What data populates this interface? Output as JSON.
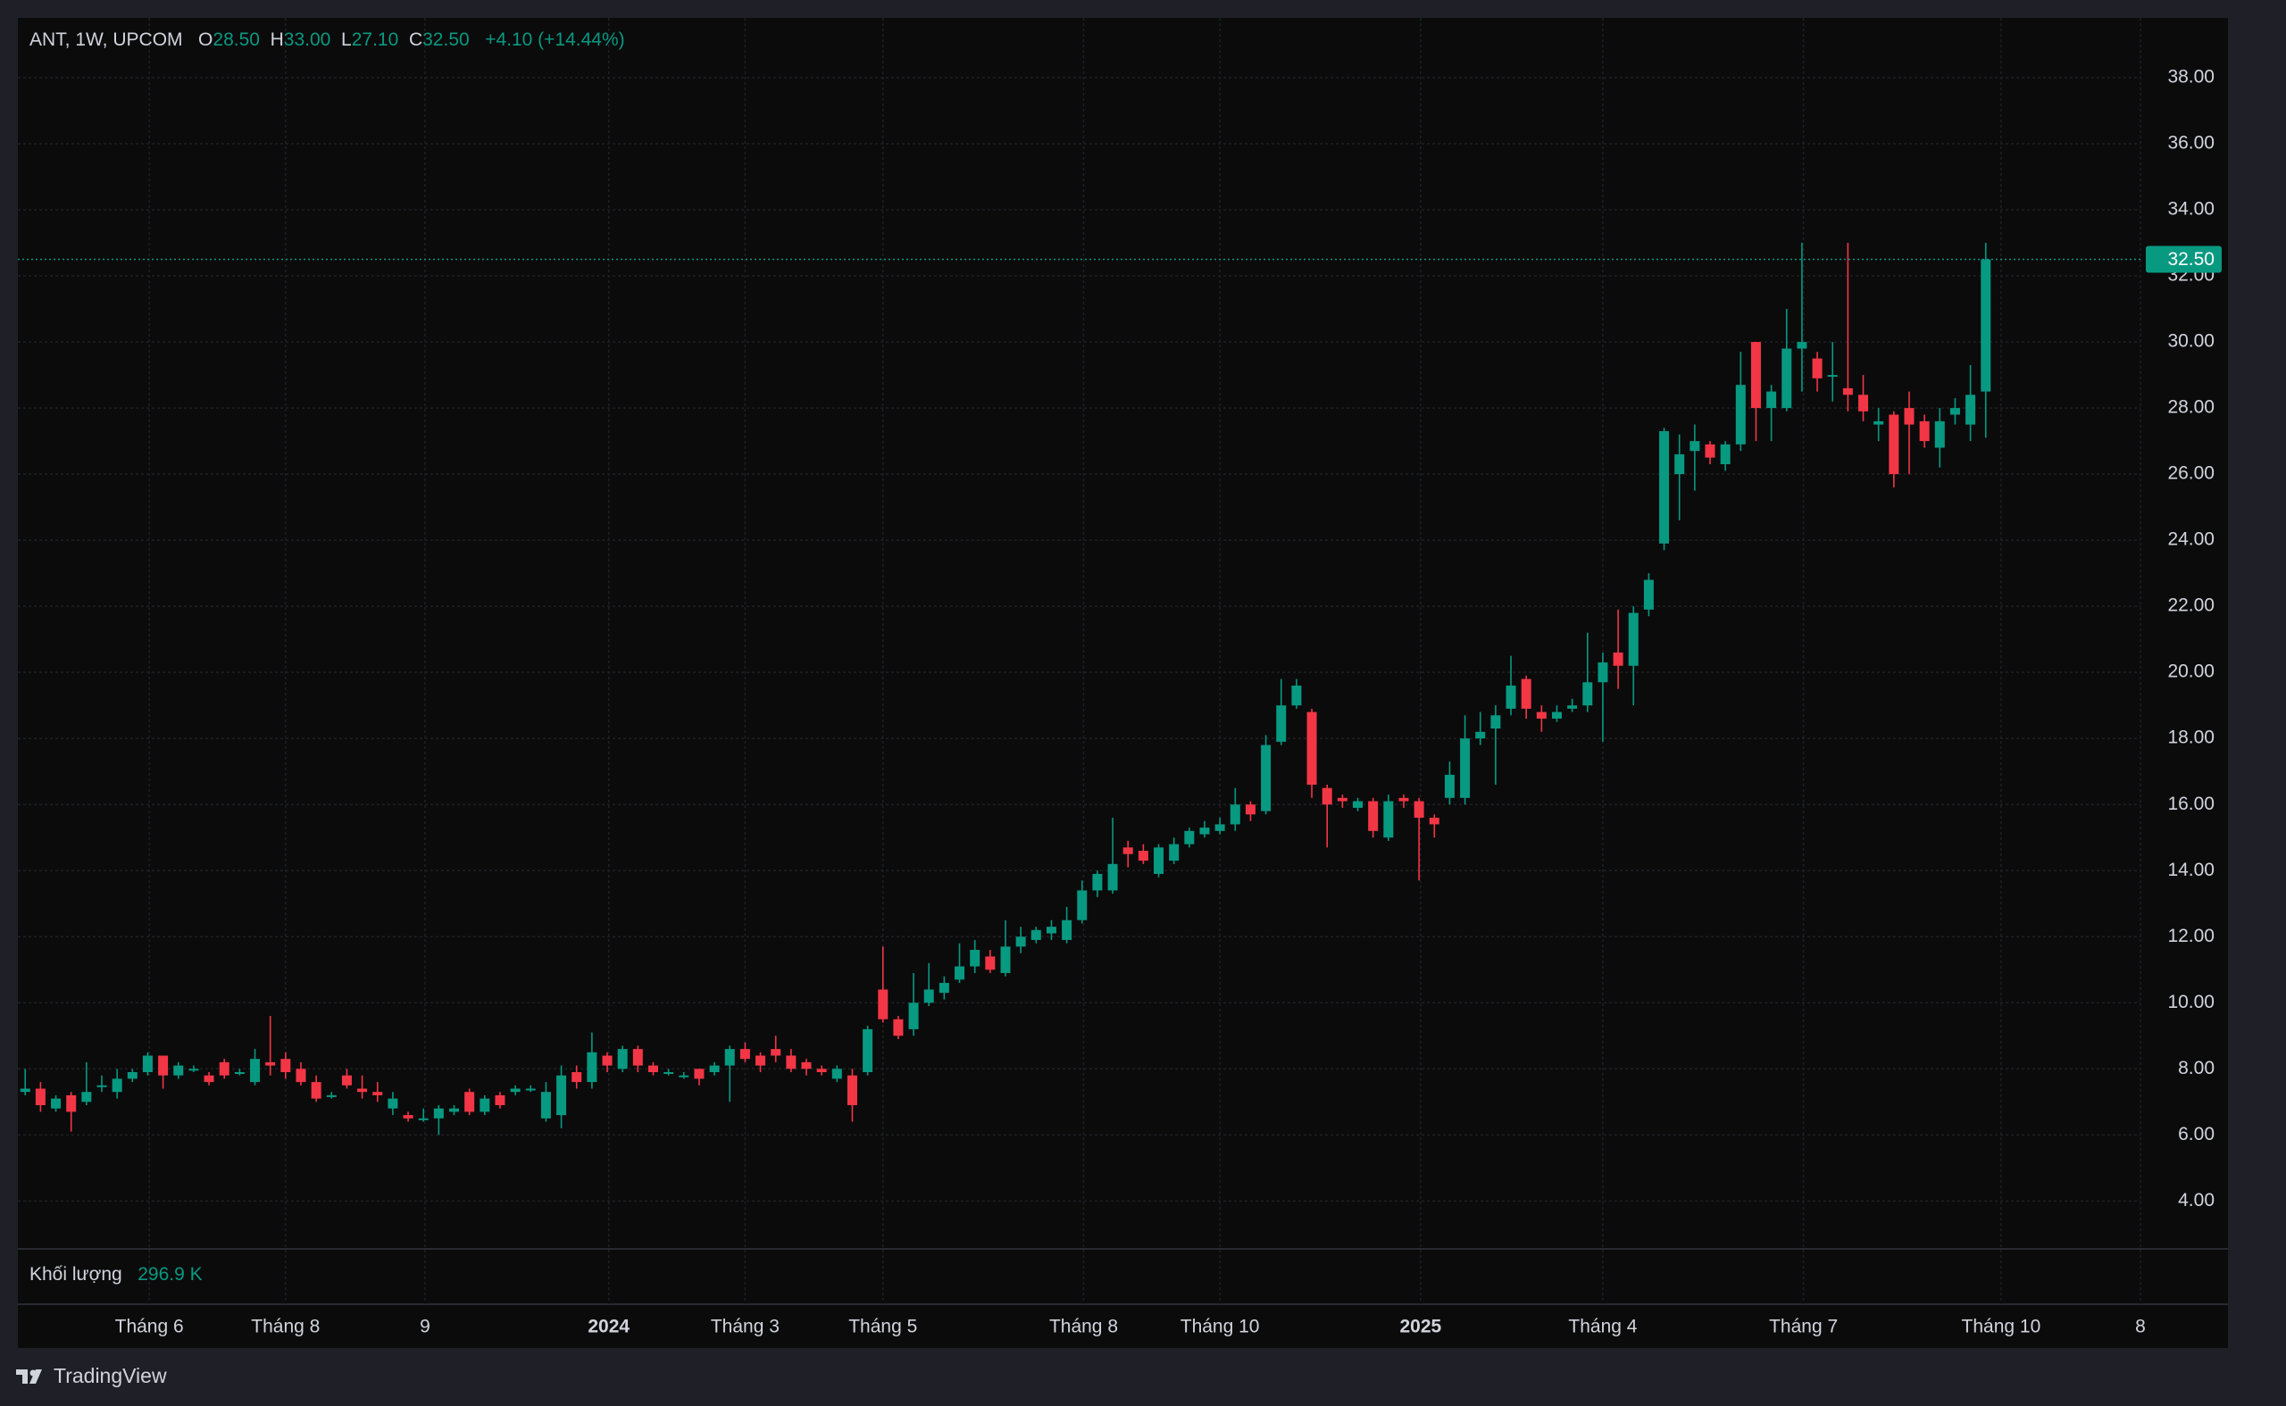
{
  "header": {
    "symbol": "ANT, 1W, UPCOM",
    "ohlc": [
      {
        "key": "O",
        "value": "28.50"
      },
      {
        "key": "H",
        "value": "33.00"
      },
      {
        "key": "L",
        "value": "27.10"
      },
      {
        "key": "C",
        "value": "32.50"
      }
    ],
    "change": "+4.10 (+14.44%)"
  },
  "volume": {
    "label": "Khối lượng",
    "value": "296.9 K"
  },
  "footer": {
    "brand": "TradingView"
  },
  "chart_data": {
    "type": "candlestick",
    "up_color": "#089981",
    "down_color": "#f23645",
    "grid": true,
    "ylim": [
      2.55,
      39.81
    ],
    "yticks": [
      {
        "value": 4,
        "label": "4.00"
      },
      {
        "value": 6,
        "label": "6.00"
      },
      {
        "value": 8,
        "label": "8.00"
      },
      {
        "value": 10,
        "label": "10.00"
      },
      {
        "value": 12,
        "label": "12.00"
      },
      {
        "value": 14,
        "label": "14.00"
      },
      {
        "value": 16,
        "label": "16.00"
      },
      {
        "value": 18,
        "label": "18.00"
      },
      {
        "value": 20,
        "label": "20.00"
      },
      {
        "value": 22,
        "label": "22.00"
      },
      {
        "value": 24,
        "label": "24.00"
      },
      {
        "value": 26,
        "label": "26.00"
      },
      {
        "value": 28,
        "label": "28.00"
      },
      {
        "value": 30,
        "label": "30.00"
      },
      {
        "value": 32,
        "label": "32.00"
      },
      {
        "value": 34,
        "label": "34.00"
      },
      {
        "value": 36,
        "label": "36.00"
      },
      {
        "value": 38,
        "label": "38.00"
      }
    ],
    "xlim": [
      -0.48,
      138.1
    ],
    "xticks": [
      {
        "value": 8.1,
        "label": "Tháng 6"
      },
      {
        "value": 17.0,
        "label": "Tháng 8"
      },
      {
        "value": 26.1,
        "label": "9"
      },
      {
        "value": 38.1,
        "label": "2024"
      },
      {
        "value": 47.0,
        "label": "Tháng 3"
      },
      {
        "value": 56.0,
        "label": "Tháng 5"
      },
      {
        "value": 69.1,
        "label": "Tháng 8"
      },
      {
        "value": 78.0,
        "label": "Tháng 10"
      },
      {
        "value": 91.1,
        "label": "2025"
      },
      {
        "value": 103.0,
        "label": "Tháng 4"
      },
      {
        "value": 116.1,
        "label": "Tháng 7"
      },
      {
        "value": 129.0,
        "label": "Tháng 10"
      },
      {
        "value": 138.1,
        "label": "8"
      }
    ],
    "open": [
      7.3,
      7.4,
      6.8,
      7.2,
      7.0,
      7.5,
      7.3,
      7.7,
      7.9,
      8.4,
      7.8,
      8.0,
      7.8,
      8.2,
      7.9,
      7.6,
      8.2,
      8.3,
      8.0,
      7.6,
      7.2,
      7.8,
      7.4,
      7.3,
      6.8,
      6.6,
      6.5,
      6.5,
      6.7,
      7.3,
      6.7,
      7.2,
      7.3,
      7.4,
      6.5,
      6.6,
      7.9,
      7.6,
      8.4,
      8.0,
      8.6,
      8.1,
      7.9,
      7.8,
      8.0,
      7.9,
      8.1,
      8.6,
      8.4,
      8.6,
      8.4,
      8.2,
      8.0,
      7.7,
      7.8,
      7.9,
      10.4,
      9.5,
      9.2,
      10.0,
      10.3,
      10.7,
      11.1,
      11.4,
      10.9,
      11.7,
      11.9,
      12.1,
      11.9,
      12.5,
      13.4,
      13.4,
      14.7,
      14.6,
      13.9,
      14.3,
      14.8,
      15.1,
      15.2,
      15.4,
      16.0,
      15.8,
      17.9,
      19.0,
      18.8,
      16.5,
      16.2,
      15.9,
      16.1,
      15.0,
      16.2,
      16.1,
      15.6,
      16.2,
      16.2,
      18.0,
      18.3,
      18.9,
      19.8,
      18.8,
      18.6,
      18.9,
      19.0,
      19.7,
      20.6,
      20.2,
      21.9,
      23.9,
      26.0,
      26.7,
      26.9,
      26.3,
      26.9,
      30.0,
      28.0,
      28.0,
      29.8,
      29.5,
      29.0,
      28.6,
      28.4,
      27.5,
      27.8,
      28.0,
      27.6,
      26.8,
      27.8,
      27.5,
      28.5
    ],
    "high": [
      8.0,
      7.6,
      7.2,
      7.3,
      8.2,
      7.8,
      8.0,
      8.0,
      8.5,
      8.4,
      8.2,
      8.1,
      7.9,
      8.3,
      8.0,
      8.6,
      9.6,
      8.5,
      8.2,
      7.8,
      7.3,
      8.0,
      7.8,
      7.6,
      7.3,
      6.7,
      6.8,
      6.9,
      6.9,
      7.4,
      7.2,
      7.3,
      7.5,
      7.5,
      7.6,
      8.1,
      8.1,
      9.1,
      8.5,
      8.7,
      8.7,
      8.2,
      8.0,
      7.9,
      8.0,
      8.2,
      8.7,
      8.8,
      8.5,
      9.0,
      8.6,
      8.3,
      8.1,
      8.1,
      8.0,
      9.3,
      11.7,
      9.6,
      10.9,
      11.2,
      10.8,
      11.8,
      11.9,
      11.6,
      12.5,
      12.3,
      12.3,
      12.5,
      12.9,
      13.7,
      14.0,
      15.6,
      14.9,
      14.8,
      14.8,
      15.0,
      15.3,
      15.5,
      15.6,
      16.5,
      16.1,
      18.1,
      19.8,
      19.8,
      18.9,
      16.6,
      16.3,
      16.2,
      16.2,
      16.3,
      16.3,
      16.2,
      15.7,
      17.3,
      18.7,
      18.8,
      19.0,
      20.5,
      19.9,
      19.0,
      19.0,
      19.2,
      21.2,
      20.6,
      21.9,
      22.0,
      23.0,
      27.4,
      27.2,
      27.5,
      27.0,
      27.0,
      29.7,
      30.0,
      28.7,
      31.0,
      33.0,
      29.7,
      30.0,
      33.0,
      29.0,
      28.0,
      27.9,
      28.5,
      27.8,
      28.0,
      28.3,
      29.3,
      33.0
    ],
    "low": [
      7.2,
      6.7,
      6.7,
      6.1,
      6.9,
      7.3,
      7.1,
      7.6,
      7.8,
      7.4,
      7.7,
      7.9,
      7.5,
      7.7,
      7.8,
      7.5,
      7.8,
      7.7,
      7.5,
      7.0,
      7.1,
      7.4,
      7.1,
      7.0,
      6.6,
      6.4,
      6.4,
      6.0,
      6.6,
      6.6,
      6.6,
      6.8,
      7.2,
      7.3,
      6.4,
      6.2,
      7.4,
      7.4,
      7.9,
      7.9,
      7.9,
      7.8,
      7.8,
      7.7,
      7.5,
      7.8,
      7.0,
      8.2,
      7.9,
      8.2,
      7.9,
      7.8,
      7.8,
      7.6,
      6.4,
      7.8,
      9.4,
      8.9,
      9.0,
      9.9,
      10.1,
      10.6,
      10.9,
      10.9,
      10.8,
      11.5,
      11.8,
      11.9,
      11.8,
      12.4,
      13.2,
      13.3,
      14.1,
      14.2,
      13.8,
      14.2,
      14.7,
      15.0,
      15.1,
      15.2,
      15.5,
      15.7,
      17.8,
      18.9,
      16.2,
      14.7,
      15.9,
      15.8,
      15.0,
      14.9,
      15.9,
      13.7,
      15.0,
      16.0,
      16.0,
      17.8,
      16.6,
      18.7,
      18.6,
      18.2,
      18.5,
      18.8,
      18.8,
      17.9,
      19.5,
      19.0,
      21.7,
      23.7,
      24.6,
      25.5,
      26.3,
      26.1,
      26.7,
      27.0,
      27.0,
      27.9,
      28.5,
      28.5,
      28.2,
      27.9,
      27.6,
      27.0,
      25.6,
      26.0,
      26.8,
      26.2,
      27.5,
      27.0,
      27.1
    ],
    "close": [
      7.4,
      6.9,
      7.1,
      6.7,
      7.3,
      7.5,
      7.7,
      7.9,
      8.4,
      7.8,
      8.1,
      8.0,
      7.6,
      7.8,
      7.9,
      8.3,
      8.1,
      7.9,
      7.6,
      7.1,
      7.2,
      7.5,
      7.3,
      7.2,
      7.1,
      6.5,
      6.5,
      6.8,
      6.8,
      6.7,
      7.1,
      6.9,
      7.4,
      7.4,
      7.3,
      7.8,
      7.6,
      8.5,
      8.1,
      8.6,
      8.1,
      7.9,
      7.9,
      7.8,
      7.7,
      8.1,
      8.6,
      8.3,
      8.1,
      8.4,
      8.0,
      8.0,
      7.9,
      8.0,
      6.9,
      9.2,
      9.5,
      9.0,
      10.0,
      10.4,
      10.6,
      11.1,
      11.6,
      11.0,
      11.7,
      12.0,
      12.2,
      12.3,
      12.5,
      13.4,
      13.9,
      14.2,
      14.5,
      14.3,
      14.7,
      14.8,
      15.2,
      15.3,
      15.4,
      16.0,
      15.7,
      17.8,
      19.0,
      19.6,
      16.6,
      16.0,
      16.1,
      16.1,
      15.2,
      16.1,
      16.1,
      15.6,
      15.4,
      16.9,
      18.0,
      18.2,
      18.7,
      19.6,
      18.9,
      18.6,
      18.8,
      19.0,
      19.7,
      20.3,
      20.2,
      21.8,
      22.8,
      27.3,
      26.6,
      27.0,
      26.5,
      26.9,
      28.7,
      28.0,
      28.5,
      29.8,
      30.0,
      28.9,
      29.0,
      28.4,
      27.9,
      27.6,
      26.0,
      27.5,
      27.0,
      27.6,
      28.0,
      28.4,
      32.5
    ]
  }
}
